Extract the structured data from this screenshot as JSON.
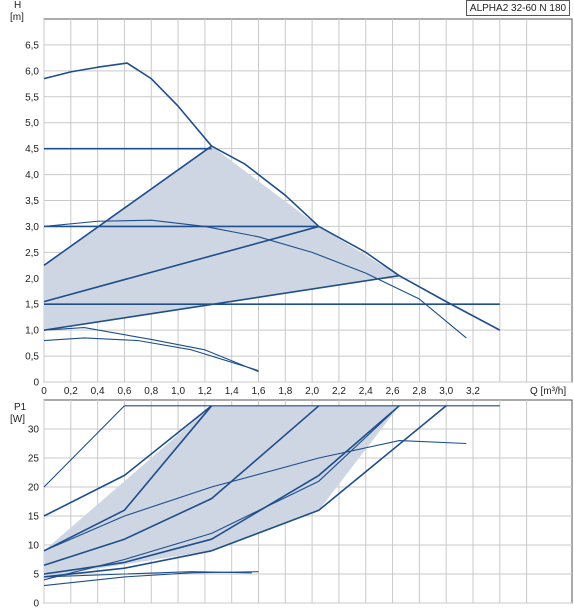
{
  "title": "ALPHA2 32-60 N 180",
  "chart_data": [
    {
      "type": "line",
      "ylabel": "H",
      "yunit": "[m]",
      "xlabel": "Q [m³/h]",
      "xlim": [
        0,
        3.7
      ],
      "ylim": [
        0,
        7.0
      ],
      "xticks": [
        "0",
        "0,2",
        "0,4",
        "0,6",
        "0,8",
        "1,0",
        "1,2",
        "1,4",
        "1,6",
        "1,8",
        "2,0",
        "2,2",
        "2,4",
        "2,6",
        "2,8",
        "3,0",
        "3,2"
      ],
      "yticks": [
        "0",
        "0,5",
        "1,0",
        "1,5",
        "2,0",
        "2,5",
        "3,0",
        "3,5",
        "4,0",
        "4,5",
        "5,0",
        "5,5",
        "6,0",
        "6,5"
      ],
      "grid": true,
      "shaded_region": [
        [
          0,
          1.0
        ],
        [
          0,
          2.25
        ],
        [
          1.25,
          4.55
        ],
        [
          2.05,
          3.0
        ],
        [
          2.65,
          2.05
        ],
        [
          0,
          1.0
        ]
      ],
      "series": [
        {
          "values": [
            [
              0,
              5.85
            ],
            [
              0.2,
              5.98
            ],
            [
              0.4,
              6.07
            ],
            [
              0.62,
              6.15
            ],
            [
              0.8,
              5.85
            ],
            [
              1.0,
              5.32
            ],
            [
              1.25,
              4.55
            ]
          ]
        },
        {
          "values": [
            [
              1.25,
              4.55
            ],
            [
              1.5,
              4.2
            ],
            [
              1.8,
              3.6
            ],
            [
              2.05,
              3.0
            ],
            [
              2.4,
              2.5
            ],
            [
              2.65,
              2.05
            ],
            [
              3.0,
              1.55
            ],
            [
              3.4,
              1.0
            ]
          ]
        },
        {
          "values": [
            [
              0,
              4.5
            ],
            [
              1.25,
              4.5
            ]
          ]
        },
        {
          "values": [
            [
              0,
              3.0
            ],
            [
              2.05,
              3.0
            ]
          ]
        },
        {
          "values": [
            [
              0,
              1.5
            ],
            [
              3.4,
              1.5
            ]
          ]
        },
        {
          "values": [
            [
              0,
              2.25
            ],
            [
              1.25,
              4.55
            ]
          ]
        },
        {
          "values": [
            [
              0,
              1.55
            ],
            [
              2.05,
              3.0
            ]
          ]
        },
        {
          "values": [
            [
              0,
              1.0
            ],
            [
              2.65,
              2.05
            ]
          ]
        },
        {
          "values": [
            [
              0,
              3.0
            ],
            [
              0.4,
              3.1
            ],
            [
              0.8,
              3.12
            ],
            [
              1.2,
              3.0
            ],
            [
              1.6,
              2.8
            ],
            [
              2.0,
              2.5
            ],
            [
              2.4,
              2.1
            ],
            [
              2.8,
              1.6
            ],
            [
              3.15,
              0.85
            ]
          ]
        },
        {
          "values": [
            [
              0,
              1.0
            ],
            [
              0.3,
              1.05
            ],
            [
              0.8,
              0.82
            ],
            [
              1.2,
              0.62
            ],
            [
              1.6,
              0.2
            ]
          ]
        },
        {
          "values": [
            [
              0,
              0.8
            ],
            [
              0.3,
              0.85
            ],
            [
              0.7,
              0.8
            ],
            [
              1.1,
              0.62
            ],
            [
              1.6,
              0.22
            ]
          ]
        }
      ]
    },
    {
      "type": "line",
      "ylabel": "P1",
      "yunit": "[W]",
      "xlim": [
        0,
        3.7
      ],
      "ylim": [
        0,
        35
      ],
      "yticks": [
        "0",
        "5",
        "10",
        "15",
        "20",
        "25",
        "30"
      ],
      "grid": true,
      "shaded_region": [
        [
          0,
          4.5
        ],
        [
          0,
          9
        ],
        [
          1.25,
          34
        ],
        [
          2.65,
          34
        ],
        [
          2.05,
          16
        ],
        [
          1.25,
          9
        ],
        [
          0,
          4.5
        ]
      ],
      "series": [
        {
          "values": [
            [
              0.6,
              34
            ],
            [
              3.4,
              34
            ]
          ]
        },
        {
          "values": [
            [
              0,
              20
            ],
            [
              0.6,
              34
            ]
          ]
        },
        {
          "values": [
            [
              0,
              15
            ],
            [
              0.6,
              22
            ],
            [
              1.25,
              34
            ]
          ]
        },
        {
          "values": [
            [
              0,
              9
            ],
            [
              0.6,
              16
            ],
            [
              1.25,
              34
            ]
          ]
        },
        {
          "values": [
            [
              0,
              6.5
            ],
            [
              0.6,
              11
            ],
            [
              1.25,
              18
            ],
            [
              2.05,
              34
            ]
          ]
        },
        {
          "values": [
            [
              0,
              5
            ],
            [
              0.6,
              7
            ],
            [
              1.25,
              11
            ],
            [
              2.05,
              22
            ],
            [
              2.65,
              34
            ]
          ]
        },
        {
          "values": [
            [
              0,
              4.5
            ],
            [
              0.6,
              6
            ],
            [
              1.25,
              9
            ],
            [
              2.05,
              16
            ],
            [
              3.0,
              34
            ]
          ]
        },
        {
          "values": [
            [
              0,
              9
            ],
            [
              0.6,
              15
            ],
            [
              1.25,
              20
            ],
            [
              2.05,
              25
            ],
            [
              2.65,
              28
            ],
            [
              3.15,
              27.5
            ]
          ]
        },
        {
          "values": [
            [
              0,
              4
            ],
            [
              0.6,
              7.5
            ],
            [
              1.25,
              12
            ],
            [
              2.05,
              21
            ],
            [
              2.65,
              34
            ]
          ]
        },
        {
          "values": [
            [
              0,
              3
            ],
            [
              0.6,
              4.5
            ],
            [
              1.1,
              5.2
            ],
            [
              1.6,
              5.4
            ]
          ]
        },
        {
          "values": [
            [
              0,
              4.5
            ],
            [
              0.6,
              5
            ],
            [
              1.1,
              5.4
            ],
            [
              1.55,
              5.2
            ]
          ]
        }
      ]
    }
  ]
}
